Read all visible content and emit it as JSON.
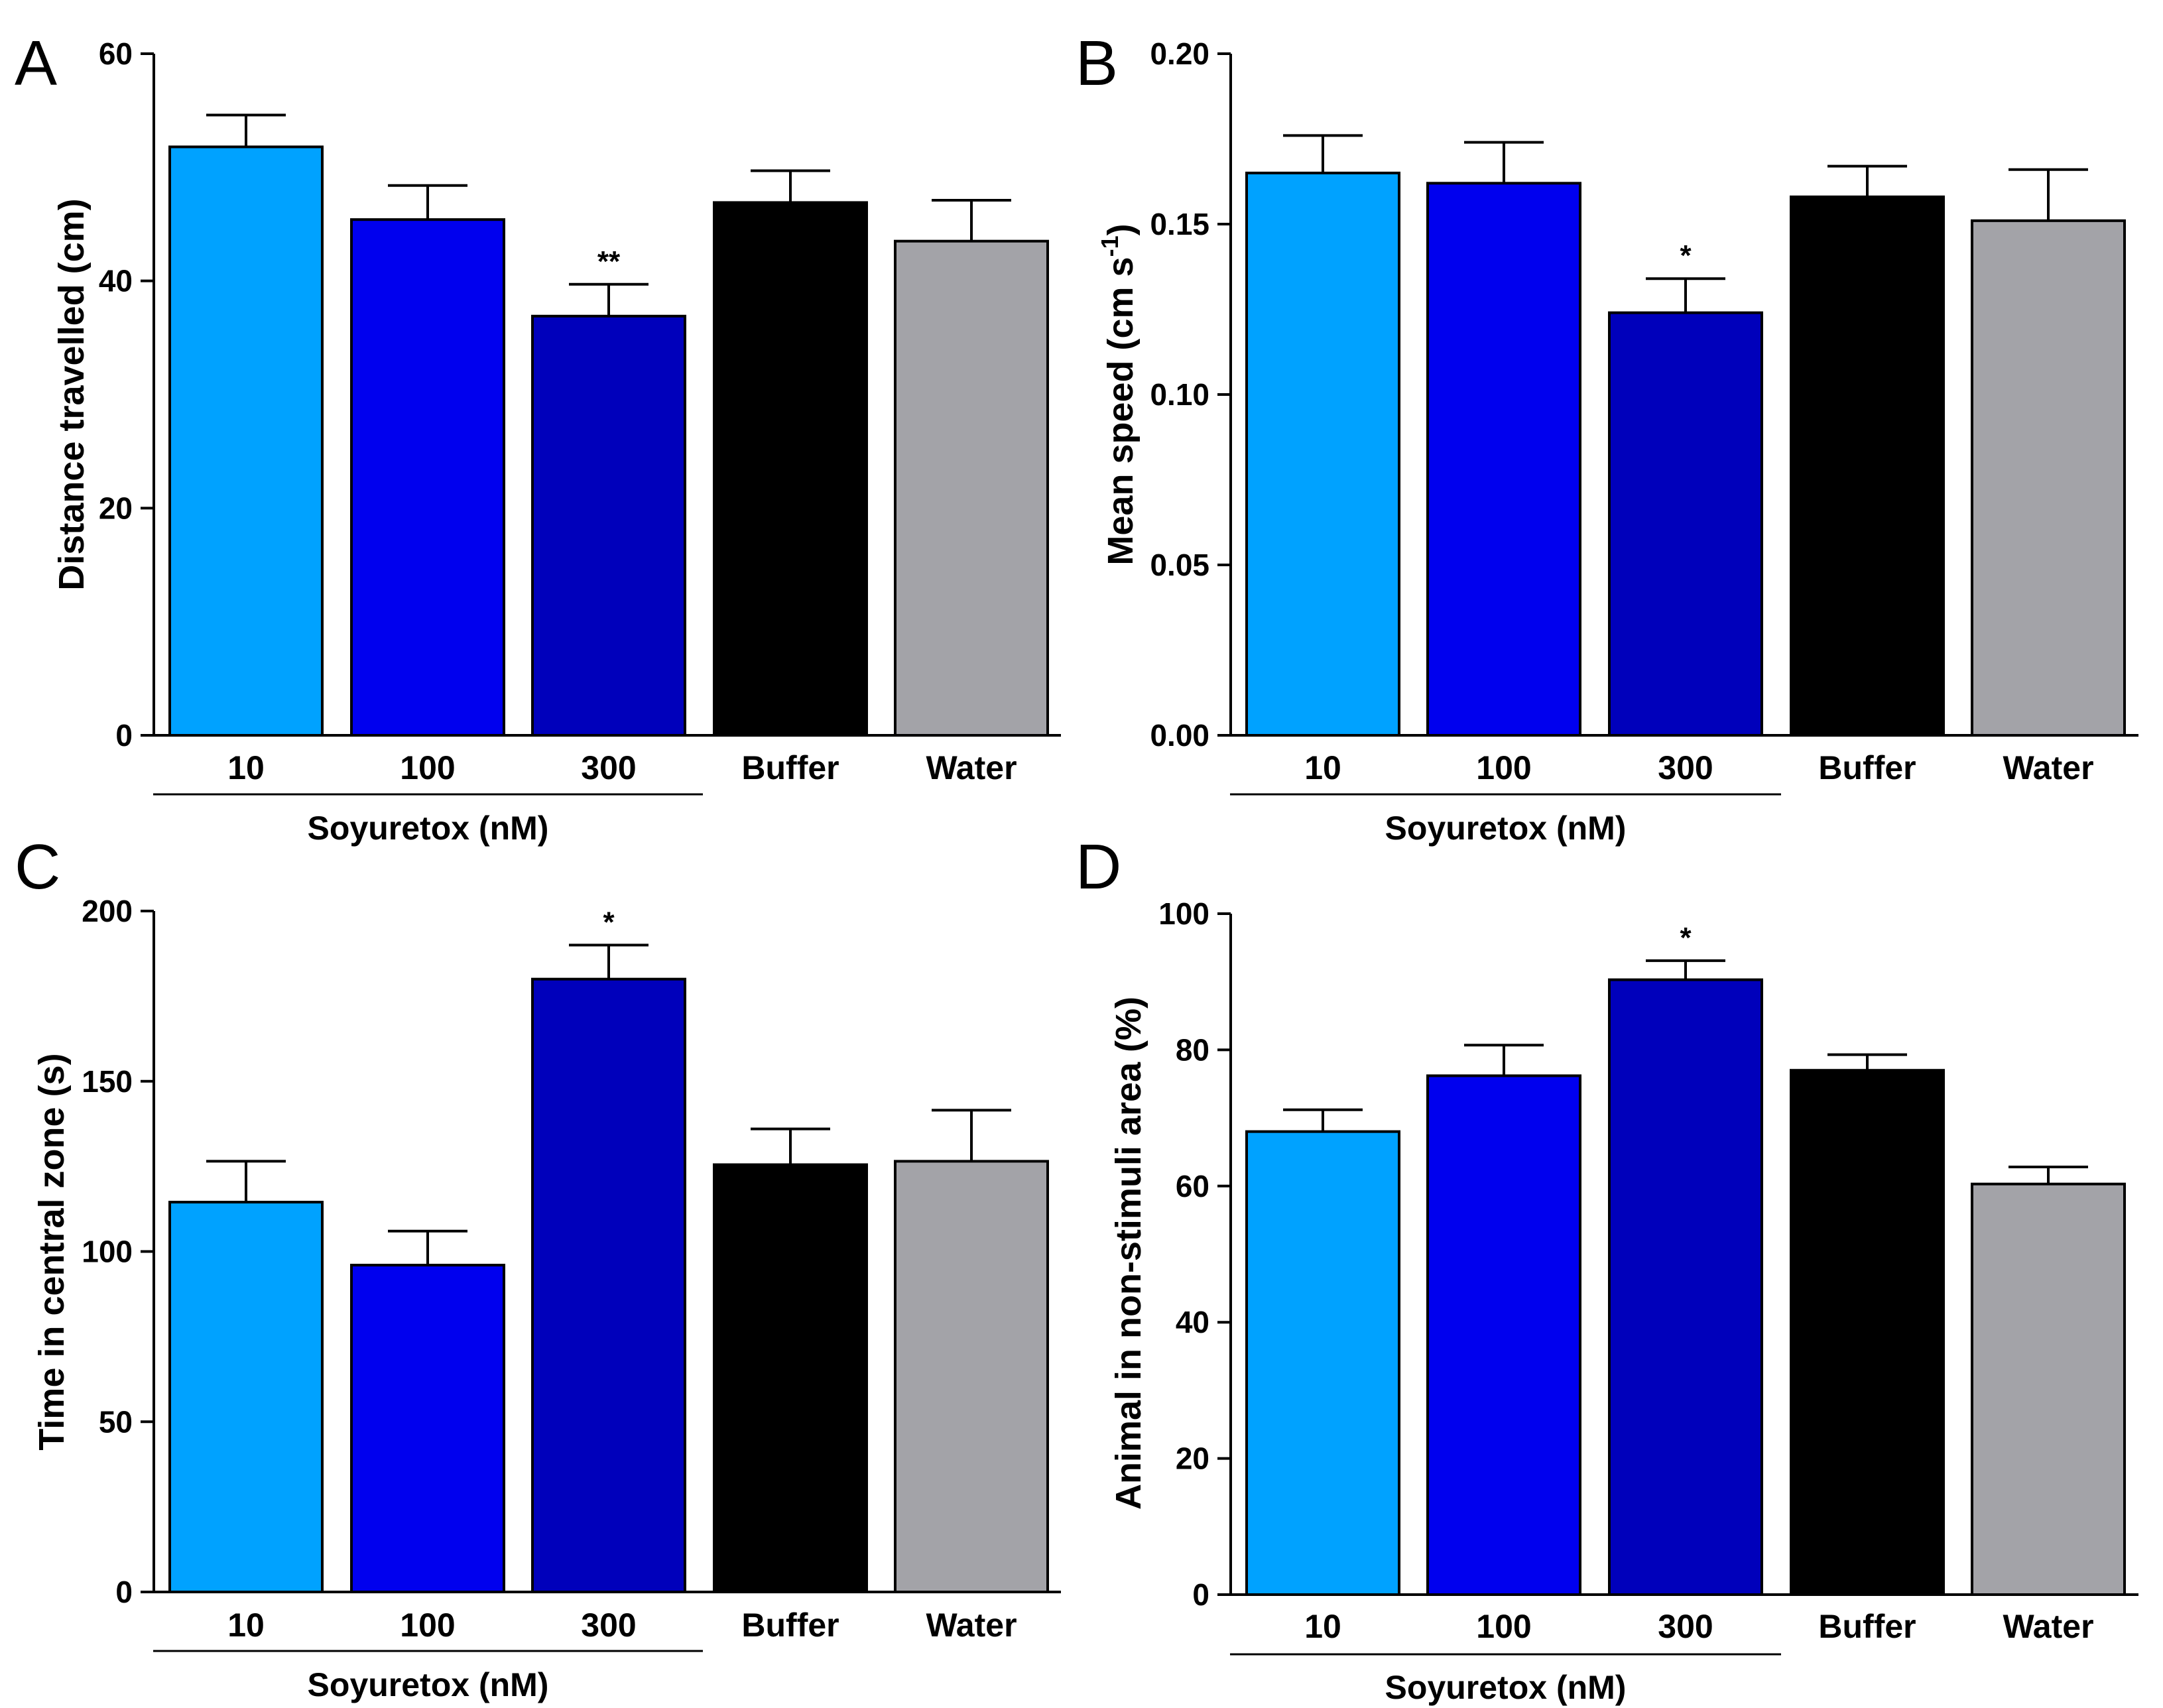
{
  "chart_data": [
    {
      "panel": "A",
      "type": "bar",
      "title": "",
      "categories": [
        "10",
        "100",
        "300",
        "Buffer",
        "Water"
      ],
      "values": [
        51.8,
        45.4,
        36.9,
        46.9,
        43.5
      ],
      "errors": [
        2.8,
        3.0,
        2.8,
        2.8,
        3.6
      ],
      "significance": [
        "",
        "",
        "**",
        "",
        ""
      ],
      "ylabel": "Distance travelled (cm)",
      "yticks": [
        "0",
        "20",
        "40",
        "60"
      ],
      "ylim": [
        0,
        60
      ],
      "group_label": "Soyuretox (nM)",
      "group_span": [
        0,
        2
      ],
      "colors": [
        "#00A2FF",
        "#0000EE",
        "#0000BB",
        "#000000",
        "#A3A3A8"
      ]
    },
    {
      "panel": "B",
      "type": "bar",
      "title": "",
      "categories": [
        "10",
        "100",
        "300",
        "Buffer",
        "Water"
      ],
      "values": [
        0.165,
        0.162,
        0.124,
        0.158,
        0.151
      ],
      "errors": [
        0.011,
        0.012,
        0.01,
        0.009,
        0.015
      ],
      "significance": [
        "",
        "",
        "*",
        "",
        ""
      ],
      "ylabel": "Mean speed (cm s",
      "ylabel_sup": "-1",
      "ylabel_end": ")",
      "yticks": [
        "0.00",
        "0.05",
        "0.10",
        "0.15",
        "0.20"
      ],
      "ylim": [
        0,
        0.2
      ],
      "group_label": "Soyuretox (nM)",
      "group_span": [
        0,
        2
      ],
      "colors": [
        "#00A2FF",
        "#0000EE",
        "#0000BB",
        "#000000",
        "#A3A3A8"
      ]
    },
    {
      "panel": "C",
      "type": "bar",
      "title": "",
      "categories": [
        "10",
        "100",
        "300",
        "Buffer",
        "Water"
      ],
      "values": [
        114.5,
        96.0,
        180.0,
        125.5,
        126.5
      ],
      "errors": [
        12.0,
        10.0,
        10.0,
        10.5,
        15.0
      ],
      "significance": [
        "",
        "",
        "*",
        "",
        ""
      ],
      "ylabel": "Time in central zone (s)",
      "yticks": [
        "0",
        "50",
        "100",
        "150",
        "200"
      ],
      "ylim": [
        0,
        200
      ],
      "group_label": "Soyuretox (nM)",
      "group_span": [
        0,
        2
      ],
      "colors": [
        "#00A2FF",
        "#0000EE",
        "#0000BB",
        "#000000",
        "#A3A3A8"
      ]
    },
    {
      "panel": "D",
      "type": "bar",
      "title": "",
      "categories": [
        "10",
        "100",
        "300",
        "Buffer",
        "Water"
      ],
      "values": [
        68.0,
        76.2,
        90.3,
        77.0,
        60.3
      ],
      "errors": [
        3.2,
        4.5,
        2.8,
        2.3,
        2.5
      ],
      "significance": [
        "",
        "",
        "*",
        "",
        ""
      ],
      "ylabel": "Animal in non-stimuli area (%)",
      "yticks": [
        "0",
        "20",
        "40",
        "60",
        "80",
        "100"
      ],
      "ylim": [
        0,
        100
      ],
      "group_label": "Soyuretox (nM)",
      "group_span": [
        0,
        2
      ],
      "colors": [
        "#00A2FF",
        "#0000EE",
        "#0000BB",
        "#000000",
        "#A3A3A8"
      ]
    }
  ]
}
